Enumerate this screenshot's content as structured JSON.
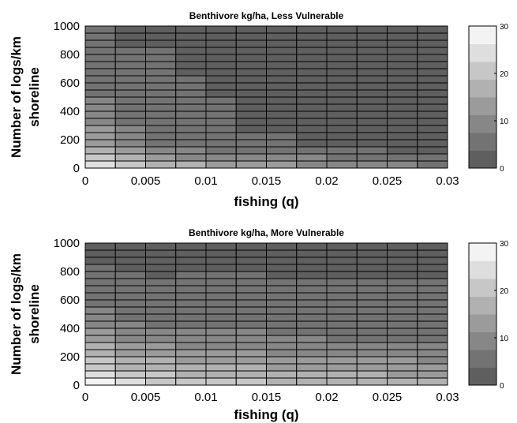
{
  "chart_data": [
    {
      "type": "heatmap",
      "title": "Benthivore kg/ha, Less Vulnerable",
      "xlabel": "fishing (q)",
      "ylabel_lines": [
        "Number of logs/km",
        "shoreline"
      ],
      "xlim": [
        0,
        0.03
      ],
      "ylim": [
        0,
        1000
      ],
      "xticks": [
        "0",
        "0.005",
        "0.01",
        "0.015",
        "0.02",
        "0.025",
        "0.03"
      ],
      "yticks": [
        "0",
        "200",
        "400",
        "600",
        "800",
        "1000"
      ],
      "x_edges": [
        0,
        0.0025,
        0.005,
        0.0075,
        0.01,
        0.0125,
        0.015,
        0.0175,
        0.02,
        0.0225,
        0.025,
        0.0275,
        0.03
      ],
      "y_edges": [
        0,
        50,
        100,
        150,
        200,
        250,
        300,
        350,
        400,
        450,
        500,
        550,
        600,
        650,
        700,
        750,
        800,
        850,
        900,
        950,
        1000
      ],
      "grid": true,
      "colorbar": {
        "min": 0,
        "max": 30,
        "levels": 8,
        "ticks": [
          "0",
          "10",
          "20",
          "30"
        ]
      },
      "columns": [
        {
          "x": 0,
          "profile": [
            [
              0,
              25
            ],
            [
              100,
              20
            ],
            [
              150,
              15
            ],
            [
              400,
              8
            ],
            [
              1000,
              4
            ]
          ]
        },
        {
          "x": 0.0025,
          "profile": [
            [
              0,
              22
            ],
            [
              100,
              15
            ],
            [
              150,
              10
            ],
            [
              400,
              6
            ],
            [
              1000,
              3
            ]
          ]
        },
        {
          "x": 0.005,
          "profile": [
            [
              0,
              19
            ],
            [
              100,
              11
            ],
            [
              150,
              7
            ],
            [
              1000,
              3
            ]
          ]
        },
        {
          "x": 0.0075,
          "profile": [
            [
              0,
              17
            ],
            [
              100,
              9
            ],
            [
              150,
              6
            ],
            [
              1000,
              2
            ]
          ]
        },
        {
          "x": 0.01,
          "profile": [
            [
              0,
              15
            ],
            [
              100,
              8
            ],
            [
              150,
              5
            ],
            [
              1000,
              2
            ]
          ]
        },
        {
          "x": 0.0125,
          "profile": [
            [
              0,
              14
            ],
            [
              100,
              7
            ],
            [
              150,
              4
            ],
            [
              1000,
              2
            ]
          ]
        },
        {
          "x": 0.015,
          "profile": [
            [
              0,
              13
            ],
            [
              100,
              7
            ],
            [
              150,
              4
            ],
            [
              1000,
              2
            ]
          ]
        },
        {
          "x": 0.0175,
          "profile": [
            [
              0,
              12
            ],
            [
              100,
              6
            ],
            [
              150,
              3
            ],
            [
              1000,
              1
            ]
          ]
        },
        {
          "x": 0.02,
          "profile": [
            [
              0,
              11
            ],
            [
              100,
              6
            ],
            [
              150,
              3
            ],
            [
              1000,
              1
            ]
          ]
        },
        {
          "x": 0.0225,
          "profile": [
            [
              0,
              10
            ],
            [
              100,
              5
            ],
            [
              150,
              3
            ],
            [
              1000,
              1
            ]
          ]
        },
        {
          "x": 0.025,
          "profile": [
            [
              0,
              9
            ],
            [
              100,
              5
            ],
            [
              150,
              2
            ],
            [
              1000,
              1
            ]
          ]
        },
        {
          "x": 0.0275,
          "profile": [
            [
              0,
              8
            ],
            [
              100,
              4
            ],
            [
              150,
              2
            ],
            [
              1000,
              1
            ]
          ]
        }
      ]
    },
    {
      "type": "heatmap",
      "title": "Benthivore kg/ha, More Vulnerable",
      "xlabel": "fishing (q)",
      "ylabel_lines": [
        "Number of logs/km",
        "shoreline"
      ],
      "xlim": [
        0,
        0.03
      ],
      "ylim": [
        0,
        1000
      ],
      "xticks": [
        "0",
        "0.005",
        "0.01",
        "0.015",
        "0.02",
        "0.025",
        "0.03"
      ],
      "yticks": [
        "0",
        "200",
        "400",
        "600",
        "800",
        "1000"
      ],
      "x_edges": [
        0,
        0.0025,
        0.005,
        0.0075,
        0.01,
        0.0125,
        0.015,
        0.0175,
        0.02,
        0.0225,
        0.025,
        0.0275,
        0.03
      ],
      "y_edges": [
        0,
        50,
        100,
        150,
        200,
        250,
        300,
        350,
        400,
        450,
        500,
        550,
        600,
        650,
        700,
        750,
        800,
        850,
        900,
        950,
        1000
      ],
      "grid": true,
      "colorbar": {
        "min": 0,
        "max": 30,
        "levels": 8,
        "ticks": [
          "0",
          "10",
          "20",
          "30"
        ]
      },
      "columns": [
        {
          "x": 0,
          "profile": [
            [
              0,
              28
            ],
            [
              200,
              18
            ],
            [
              400,
              11
            ],
            [
              600,
              6
            ],
            [
              1000,
              2
            ]
          ]
        },
        {
          "x": 0.0025,
          "profile": [
            [
              0,
              25
            ],
            [
              150,
              17
            ],
            [
              250,
              13
            ],
            [
              450,
              8
            ],
            [
              500,
              6
            ],
            [
              1000,
              2
            ]
          ]
        },
        {
          "x": 0.005,
          "profile": [
            [
              0,
              23
            ],
            [
              150,
              16
            ],
            [
              250,
              12
            ],
            [
              400,
              8
            ],
            [
              450,
              6
            ],
            [
              1000,
              2
            ]
          ]
        },
        {
          "x": 0.0075,
          "profile": [
            [
              0,
              22
            ],
            [
              150,
              15
            ],
            [
              250,
              12
            ],
            [
              400,
              7
            ],
            [
              1000,
              2
            ]
          ]
        },
        {
          "x": 0.01,
          "profile": [
            [
              0,
              21
            ],
            [
              150,
              14
            ],
            [
              250,
              11
            ],
            [
              400,
              7
            ],
            [
              1000,
              2
            ]
          ]
        },
        {
          "x": 0.0125,
          "profile": [
            [
              0,
              20
            ],
            [
              150,
              14
            ],
            [
              250,
              11
            ],
            [
              400,
              7
            ],
            [
              1000,
              2
            ]
          ]
        },
        {
          "x": 0.015,
          "profile": [
            [
              0,
              19
            ],
            [
              150,
              13
            ],
            [
              250,
              10
            ],
            [
              350,
              7
            ],
            [
              1000,
              2
            ]
          ]
        },
        {
          "x": 0.0175,
          "profile": [
            [
              0,
              19
            ],
            [
              150,
              13
            ],
            [
              250,
              10
            ],
            [
              350,
              7
            ],
            [
              1000,
              2
            ]
          ]
        },
        {
          "x": 0.02,
          "profile": [
            [
              0,
              18
            ],
            [
              150,
              12
            ],
            [
              250,
              10
            ],
            [
              300,
              7
            ],
            [
              1000,
              2
            ]
          ]
        },
        {
          "x": 0.0225,
          "profile": [
            [
              0,
              18
            ],
            [
              150,
              12
            ],
            [
              250,
              9
            ],
            [
              300,
              7
            ],
            [
              1000,
              2
            ]
          ]
        },
        {
          "x": 0.025,
          "profile": [
            [
              0,
              17
            ],
            [
              150,
              12
            ],
            [
              250,
              9
            ],
            [
              300,
              7
            ],
            [
              1000,
              2
            ]
          ]
        },
        {
          "x": 0.0275,
          "profile": [
            [
              0,
              17
            ],
            [
              150,
              11
            ],
            [
              250,
              9
            ],
            [
              300,
              7
            ],
            [
              1000,
              2
            ]
          ]
        }
      ]
    }
  ]
}
